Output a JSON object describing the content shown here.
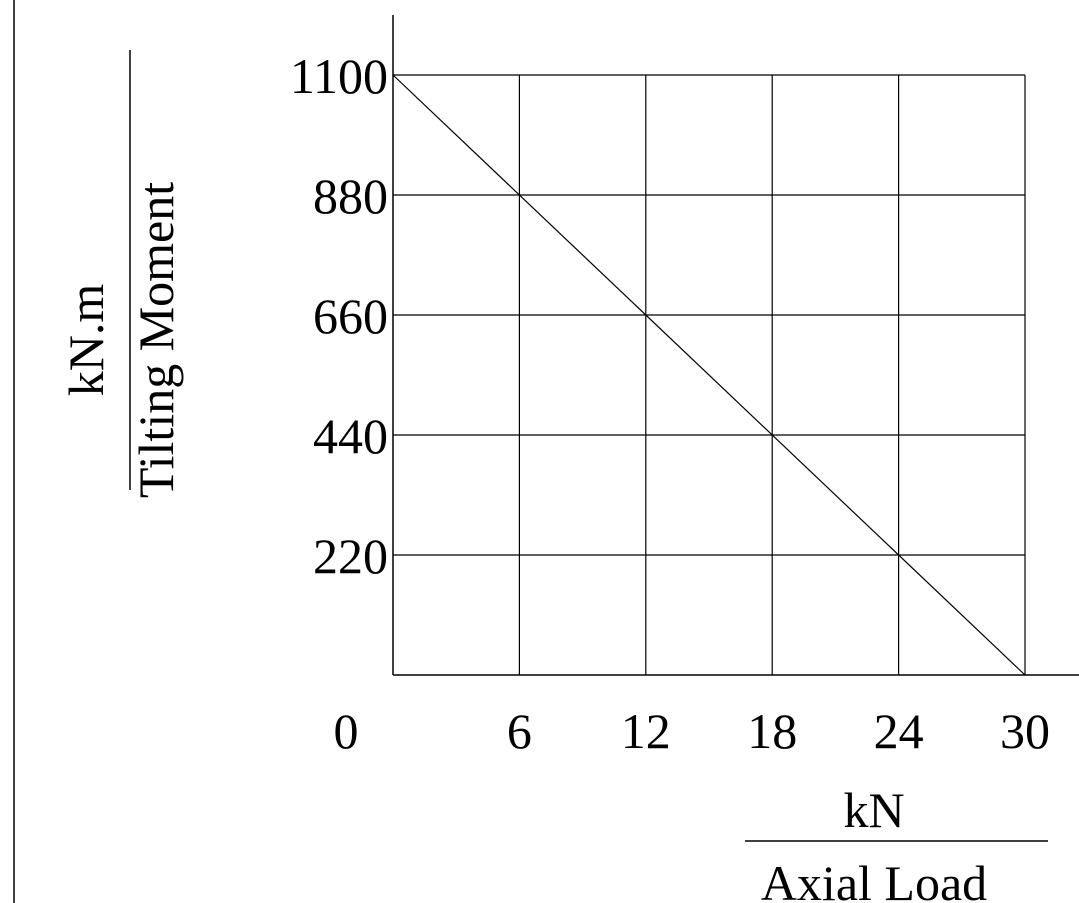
{
  "chart_data": {
    "type": "line",
    "title": "",
    "xlabel": {
      "name": "Axial Load",
      "unit": "kN"
    },
    "ylabel": {
      "name": "Tilting Moment",
      "unit": "kN.m"
    },
    "x_ticks": [
      "0",
      "6",
      "12",
      "18",
      "24",
      "30"
    ],
    "y_ticks": [
      "220",
      "440",
      "660",
      "880",
      "1100"
    ],
    "xlim": [
      0,
      30
    ],
    "ylim": [
      0,
      1100
    ],
    "grid": true,
    "series": [
      {
        "x": [
          0,
          30
        ],
        "y": [
          1100,
          0
        ]
      }
    ]
  }
}
